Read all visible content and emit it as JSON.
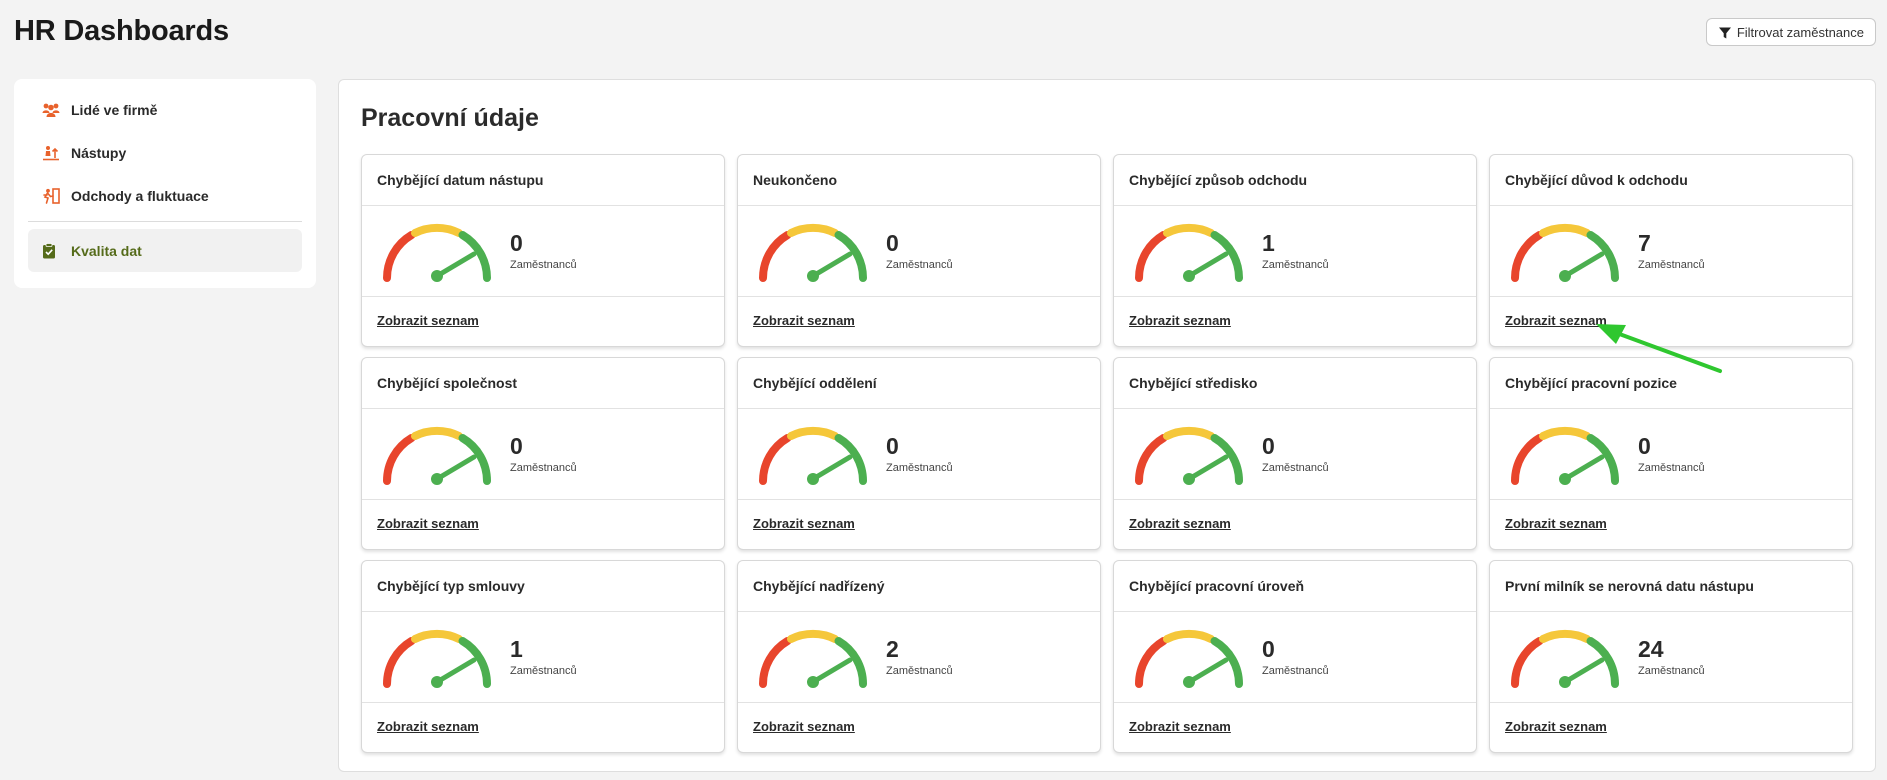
{
  "app": {
    "title": "HR Dashboards"
  },
  "filter_button": {
    "label": "Filtrovat zaměstnance",
    "icon": "filter-icon"
  },
  "sidebar": {
    "items": [
      {
        "label": "Lidé ve firmě",
        "icon": "people-icon",
        "active": false
      },
      {
        "label": "Nástupy",
        "icon": "onboarding-icon",
        "active": false
      },
      {
        "label": "Odchody a fluktuace",
        "icon": "exit-icon",
        "active": false
      },
      {
        "label": "Kvalita dat",
        "icon": "clipboard-check-icon",
        "active": true
      }
    ]
  },
  "main": {
    "title": "Pracovní údaje",
    "link_label": "Zobrazit seznam",
    "count_label": "Zaměstnanců",
    "cards": [
      {
        "title": "Chybějící datum nástupu",
        "value": "0"
      },
      {
        "title": "Neukončeno",
        "value": "0"
      },
      {
        "title": "Chybějící způsob odchodu",
        "value": "1"
      },
      {
        "title": "Chybějící důvod k odchodu",
        "value": "7"
      },
      {
        "title": "Chybějící společnost",
        "value": "0"
      },
      {
        "title": "Chybějící oddělení",
        "value": "0"
      },
      {
        "title": "Chybějící středisko",
        "value": "0"
      },
      {
        "title": "Chybějící pracovní pozice",
        "value": "0"
      },
      {
        "title": "Chybějící typ smlouvy",
        "value": "1"
      },
      {
        "title": "Chybějící nadřízený",
        "value": "2"
      },
      {
        "title": "Chybějící pracovní úroveň",
        "value": "0"
      },
      {
        "title": "První milník se nerovná datu nástupu",
        "value": "24"
      }
    ]
  },
  "colors": {
    "gauge_red": "#e8452c",
    "gauge_yellow": "#f5c73a",
    "gauge_green": "#4caf50",
    "accent_orange": "#e8622c",
    "active_text": "#556b1a",
    "annotation_arrow": "#2fc72f"
  }
}
